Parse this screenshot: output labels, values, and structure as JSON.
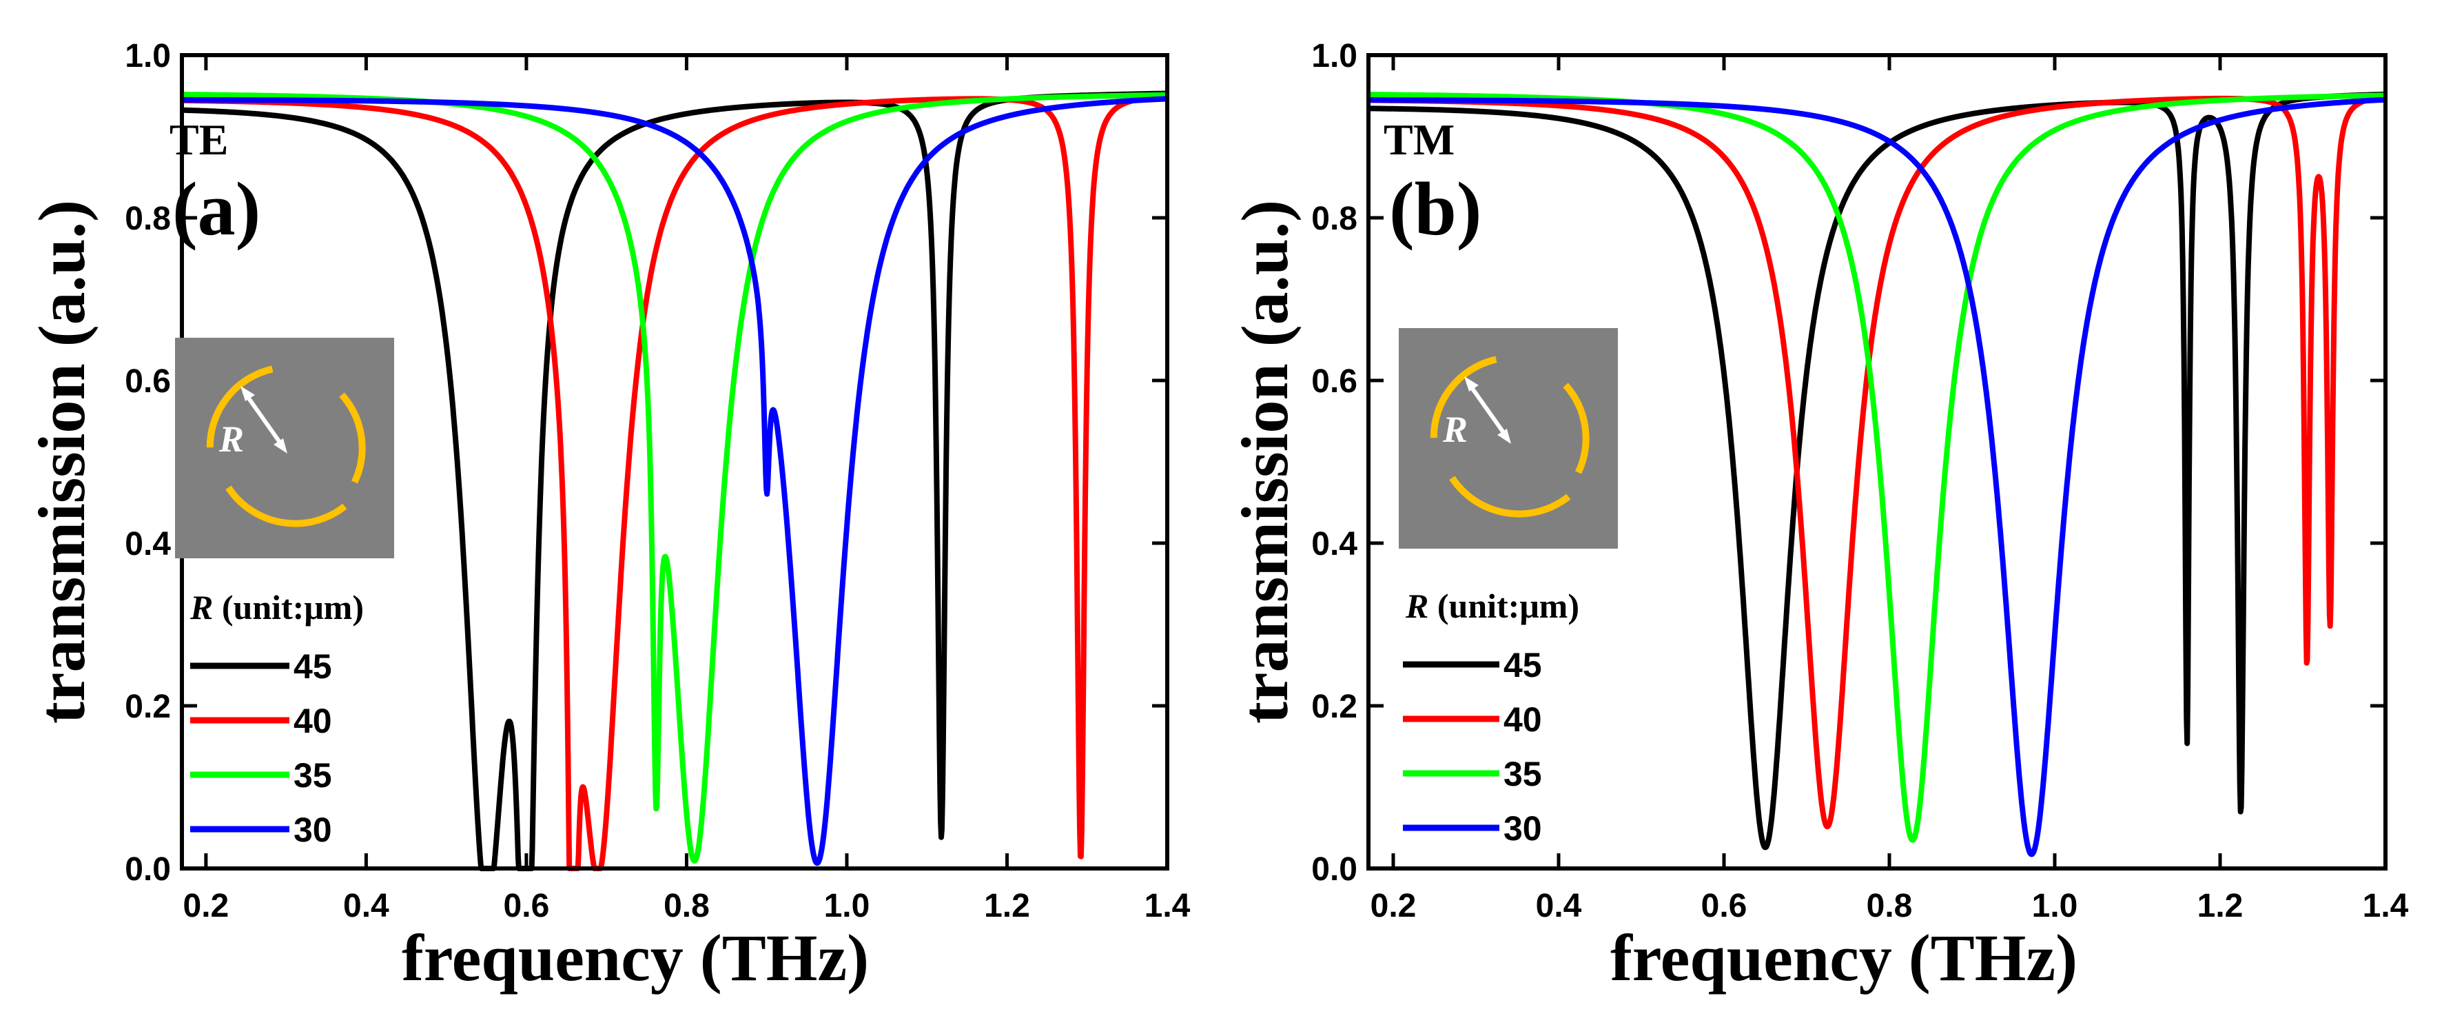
{
  "chart_data": [
    {
      "type": "line",
      "panel": "(a)",
      "polarization": "TE",
      "xlabel": "frequency (THz)",
      "ylabel": "transmission (a.u.)",
      "xlim": [
        0.17,
        1.4
      ],
      "ylim": [
        0.0,
        1.0
      ],
      "xticks": [
        0.2,
        0.4,
        0.6,
        0.8,
        1.0,
        1.2,
        1.4
      ],
      "xtick_labels": [
        "0.2",
        "0.4",
        "0.6",
        "0.8",
        "1.0",
        "1.2",
        "1.4"
      ],
      "yticks": [
        0.0,
        0.2,
        0.4,
        0.6,
        0.8,
        1.0
      ],
      "ytick_labels": [
        "0.0",
        "0.2",
        "0.4",
        "0.6",
        "0.8",
        "1.0"
      ],
      "legend_title_symbol": "R",
      "legend_title_unit": " (unit:μm)",
      "legend_position": "left-bottom",
      "inset_label": "R",
      "series": [
        {
          "name": "45",
          "color": "#000000",
          "baseline": 0.955,
          "drift": -0.012,
          "features": [
            {
              "f0": 0.55,
              "depth": 0.94,
              "width": 0.033
            },
            {
              "f0": 0.6,
              "depth": 0.95,
              "width": 0.012
            },
            {
              "f0": 1.118,
              "depth": 0.91,
              "width": 0.006
            }
          ]
        },
        {
          "name": "40",
          "color": "#ff0000",
          "baseline": 0.955,
          "drift": -0.005,
          "features": [
            {
              "f0": 0.658,
              "depth": 0.9,
              "width": 0.005
            },
            {
              "f0": 0.69,
              "depth": 0.94,
              "width": 0.036
            },
            {
              "f0": 1.292,
              "depth": 0.94,
              "width": 0.006
            }
          ]
        },
        {
          "name": "35",
          "color": "#00ff00",
          "baseline": 0.955,
          "drift": 0.0,
          "features": [
            {
              "f0": 0.762,
              "depth": 0.52,
              "width": 0.005
            },
            {
              "f0": 0.81,
              "depth": 0.94,
              "width": 0.038
            }
          ]
        },
        {
          "name": "30",
          "color": "#0000ff",
          "baseline": 0.955,
          "drift": -0.006,
          "features": [
            {
              "f0": 0.9,
              "depth": 0.2,
              "width": 0.004
            },
            {
              "f0": 0.963,
              "depth": 0.945,
              "width": 0.042
            }
          ]
        }
      ]
    },
    {
      "type": "line",
      "panel": "(b)",
      "polarization": "TM",
      "xlabel": "frequency (THz)",
      "ylabel": "transmission (a.u.)",
      "xlim": [
        0.17,
        1.4
      ],
      "ylim": [
        0.0,
        1.0
      ],
      "xticks": [
        0.2,
        0.4,
        0.6,
        0.8,
        1.0,
        1.2,
        1.4
      ],
      "xtick_labels": [
        "0.2",
        "0.4",
        "0.6",
        "0.8",
        "1.0",
        "1.2",
        "1.4"
      ],
      "yticks": [
        0.0,
        0.2,
        0.4,
        0.6,
        0.8,
        1.0
      ],
      "ytick_labels": [
        "0.0",
        "0.2",
        "0.4",
        "0.6",
        "0.8",
        "1.0"
      ],
      "legend_title_symbol": "R",
      "legend_title_unit": " (unit:μm)",
      "legend_position": "left-bottom",
      "inset_label": "R",
      "series": [
        {
          "name": "45",
          "color": "#000000",
          "baseline": 0.955,
          "drift": -0.012,
          "features": [
            {
              "f0": 0.65,
              "depth": 0.92,
              "width": 0.038
            },
            {
              "f0": 1.16,
              "depth": 0.79,
              "width": 0.003
            },
            {
              "f0": 1.225,
              "depth": 0.88,
              "width": 0.005
            }
          ]
        },
        {
          "name": "40",
          "color": "#ff0000",
          "baseline": 0.955,
          "drift": -0.005,
          "features": [
            {
              "f0": 0.725,
              "depth": 0.9,
              "width": 0.038
            },
            {
              "f0": 1.305,
              "depth": 0.69,
              "width": 0.004
            },
            {
              "f0": 1.333,
              "depth": 0.64,
              "width": 0.004
            }
          ]
        },
        {
          "name": "35",
          "color": "#00ff00",
          "baseline": 0.955,
          "drift": 0.0,
          "features": [
            {
              "f0": 0.828,
              "depth": 0.92,
              "width": 0.04
            }
          ]
        },
        {
          "name": "30",
          "color": "#0000ff",
          "baseline": 0.955,
          "drift": -0.006,
          "features": [
            {
              "f0": 0.972,
              "depth": 0.935,
              "width": 0.044
            }
          ]
        }
      ]
    }
  ]
}
